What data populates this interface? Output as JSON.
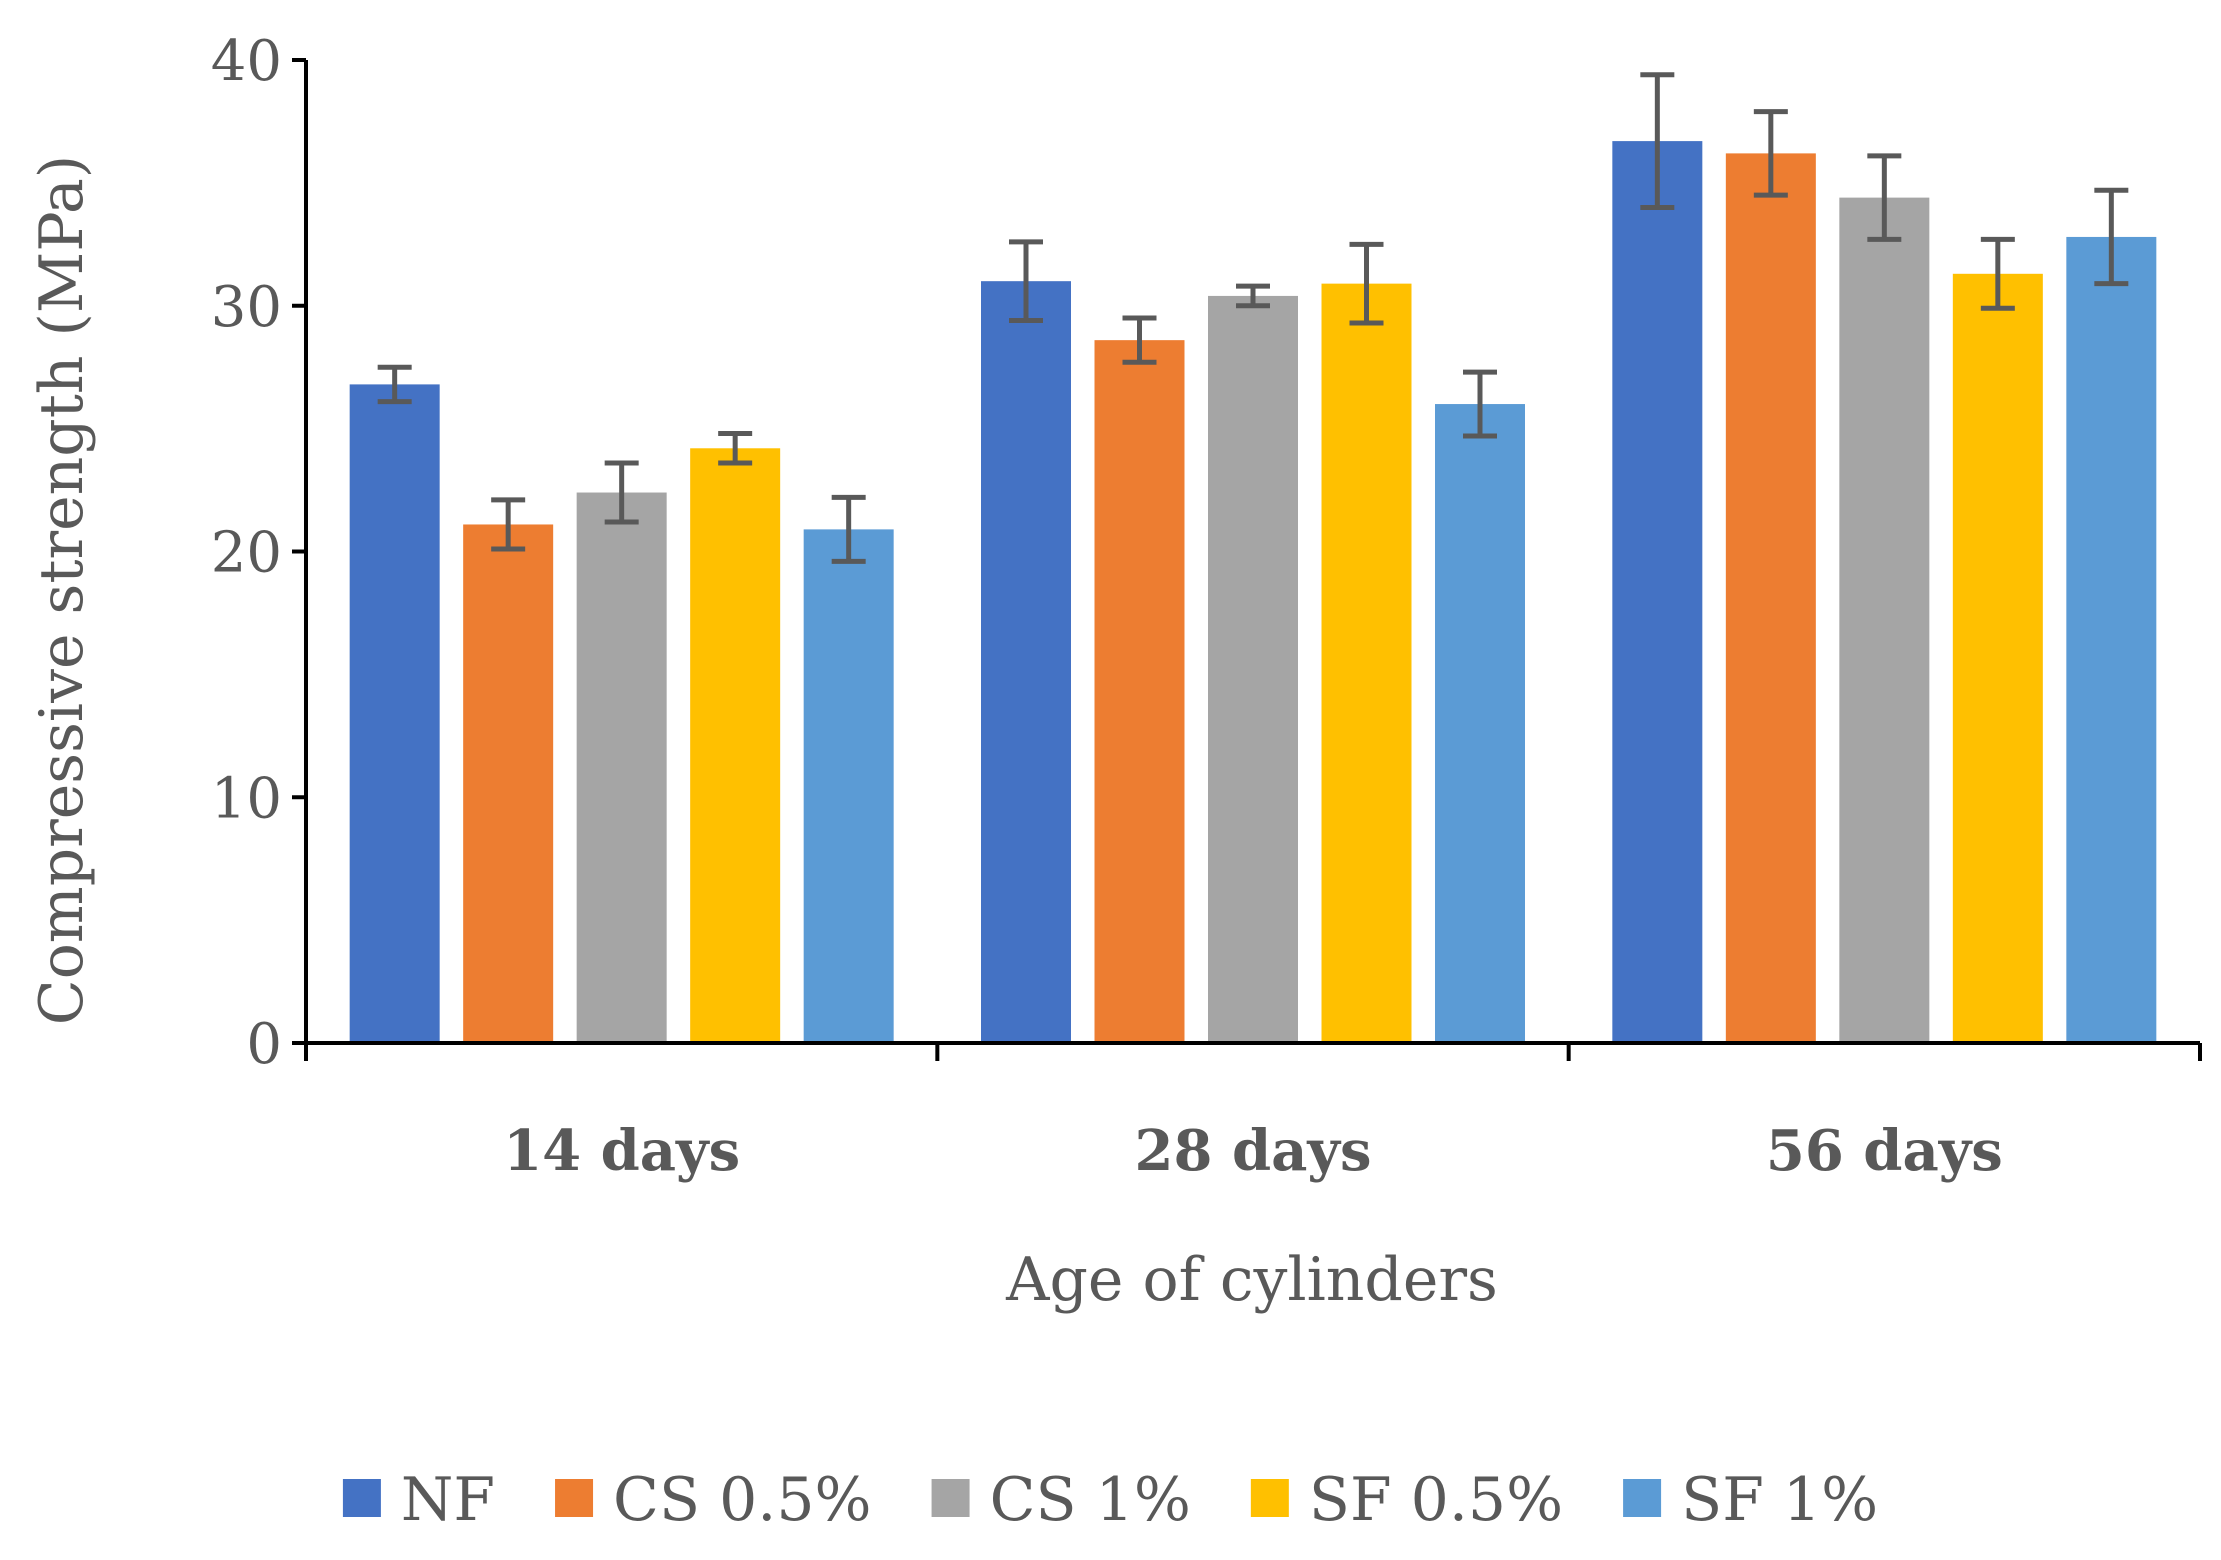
{
  "chart_data": {
    "type": "bar",
    "title": "",
    "xlabel": "Age of cylinders",
    "ylabel": "Compressive strength (MPa)",
    "ylim": [
      0,
      40
    ],
    "yticks": [
      0,
      10,
      20,
      30,
      40
    ],
    "ytick_labels": [
      "0",
      "10",
      "20",
      "30",
      "40"
    ],
    "grid": false,
    "legend_position": "bottom",
    "categories": [
      "14 days",
      "28 days",
      "56 days"
    ],
    "series": [
      {
        "name": "NF",
        "color": "#4472C4",
        "values": [
          26.8,
          31.0,
          36.7
        ],
        "errors": [
          0.7,
          1.6,
          2.7
        ]
      },
      {
        "name": "CS 0.5%",
        "color": "#ED7D31",
        "values": [
          21.1,
          28.6,
          36.2
        ],
        "errors": [
          1.0,
          0.9,
          1.7
        ]
      },
      {
        "name": "CS 1%",
        "color": "#A5A5A5",
        "values": [
          22.4,
          30.4,
          34.4
        ],
        "errors": [
          1.2,
          0.4,
          1.7
        ]
      },
      {
        "name": "SF 0.5%",
        "color": "#FFC000",
        "values": [
          24.2,
          30.9,
          31.3
        ],
        "errors": [
          0.6,
          1.6,
          1.4
        ]
      },
      {
        "name": "SF 1%",
        "color": "#5B9BD5",
        "values": [
          20.9,
          26.0,
          32.8
        ],
        "errors": [
          1.3,
          1.3,
          1.9
        ]
      }
    ],
    "error_bar_color": "#595959",
    "axis_color": "#000000"
  }
}
